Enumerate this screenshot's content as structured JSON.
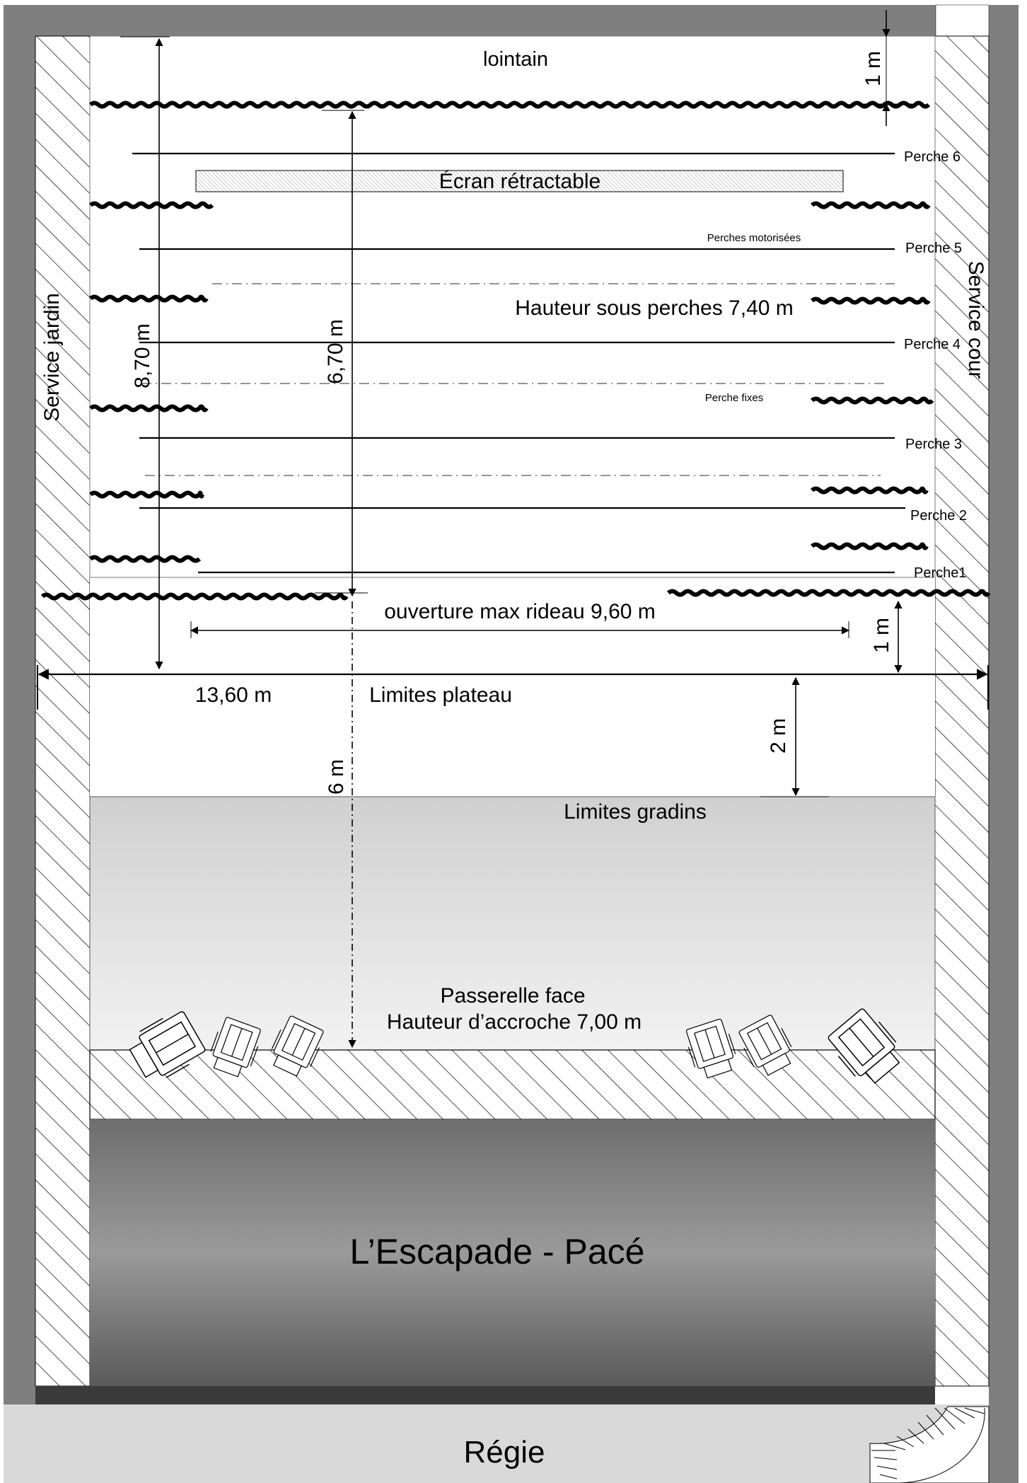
{
  "labels": {
    "lointain": "lointain",
    "ecran": "Écran rétractable",
    "perches_motorisees": "Perches motorisées",
    "hauteur_sous_perches": "Hauteur sous perches 7,40 m",
    "perche_fixes": "Perche fixes",
    "ouverture": "ouverture max rideau 9,60 m",
    "largeur": "13,60 m",
    "limites_plateau": "Limites plateau",
    "limites_gradins": "Limites gradins",
    "passerelle_line1": "Passerelle face",
    "passerelle_line2": "Hauteur d’accroche 7,00 m",
    "venue": "L’Escapade - Pacé",
    "regie": "Régie",
    "service_jardin": "Service  jardin",
    "service_cour": "Service cour"
  },
  "perches": [
    "Perche 6",
    "Perche 5",
    "Perche 4",
    "Perche 3",
    "Perche 2",
    "Perche1"
  ],
  "dimensions": {
    "d_1m_top": "1 m",
    "d_870": "8,70 m",
    "d_670": "6,70 m",
    "d_1m_mid": "1 m",
    "d_2m": "2 m",
    "d_6m": "6 m"
  },
  "colors": {
    "outer_wall": "#7f7f7f",
    "regie_floor": "#d9d9d9",
    "stage_edge": "#3a3a3a",
    "line": "#000000"
  },
  "icons": {
    "projector": "stage-light-icon",
    "stairs": "spiral-stair-icon"
  }
}
